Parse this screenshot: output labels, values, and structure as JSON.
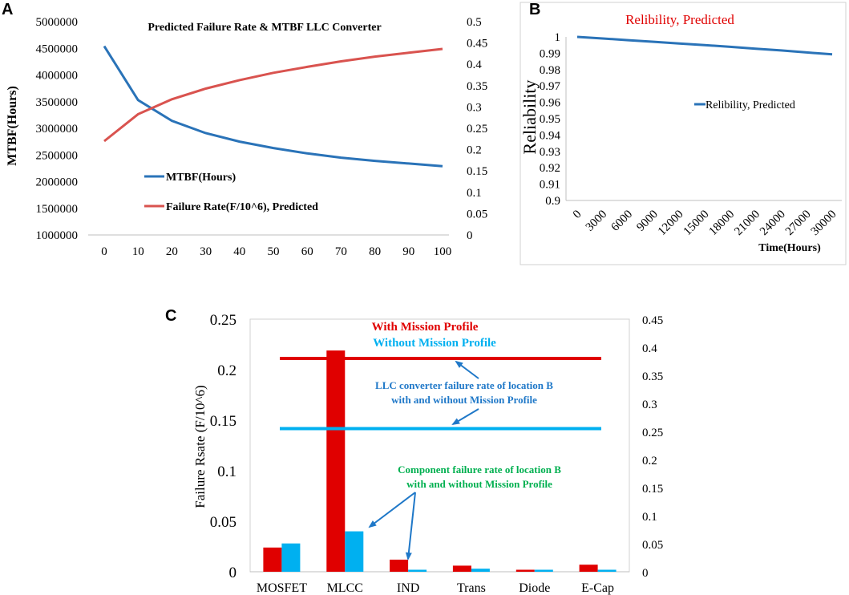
{
  "colors": {
    "blue_line": "#2a73b8",
    "red_line": "#d9534f",
    "red_bar": "#e00000",
    "cyan_bar": "#00b0f0",
    "green_text": "#00b050",
    "blue_text": "#1f78c8",
    "red_title": "#e00000",
    "axis": "#bfbfbf",
    "frame": "#d0d0d0"
  },
  "panels": {
    "a": "A",
    "b": "B",
    "c": "C"
  },
  "chart_data": [
    {
      "id": "A",
      "type": "line",
      "title": "Predicted Failure Rate & MTBF LLC Converter",
      "xlabel": "",
      "ylabel": "MTBF(Hours)",
      "x": [
        0,
        10,
        20,
        30,
        40,
        50,
        60,
        70,
        80,
        90,
        100
      ],
      "x_ticks": [
        "0",
        "10",
        "20",
        "30",
        "40",
        "50",
        "60",
        "70",
        "80",
        "90",
        "100"
      ],
      "ylim": [
        1000000,
        5000000
      ],
      "y_ticks": [
        "1000000",
        "1500000",
        "2000000",
        "2500000",
        "3000000",
        "3500000",
        "4000000",
        "4500000",
        "5000000"
      ],
      "y2lim": [
        0,
        0.5
      ],
      "y2_ticks": [
        "0",
        "0.05",
        "0.1",
        "0.15",
        "0.2",
        "0.25",
        "0.3",
        "0.35",
        "0.4",
        "0.45",
        "0.5"
      ],
      "series": [
        {
          "name": "MTBF(Hours)",
          "axis": "left",
          "color": "#2a73b8",
          "values": [
            4540000,
            3530000,
            3140000,
            2910000,
            2750000,
            2630000,
            2530000,
            2450000,
            2390000,
            2340000,
            2290000
          ]
        },
        {
          "name": "Failure Rate(F/10^6), Predicted",
          "axis": "right",
          "color": "#d9534f",
          "values": [
            0.22,
            0.283,
            0.318,
            0.343,
            0.363,
            0.38,
            0.394,
            0.407,
            0.418,
            0.427,
            0.436
          ]
        }
      ],
      "legend": "center-left"
    },
    {
      "id": "B",
      "type": "line",
      "title": "Relibility, Predicted",
      "xlabel": "Time(Hours)",
      "ylabel": "Reliability",
      "x": [
        0,
        3000,
        6000,
        9000,
        12000,
        15000,
        18000,
        21000,
        24000,
        27000,
        30000
      ],
      "x_ticks": [
        "0",
        "3000",
        "6000",
        "9000",
        "12000",
        "15000",
        "18000",
        "21000",
        "24000",
        "27000",
        "30000"
      ],
      "ylim": [
        0.9,
        1.0
      ],
      "y_ticks": [
        "0.9",
        "0.91",
        "0.92",
        "0.93",
        "0.94",
        "0.95",
        "0.96",
        "0.97",
        "0.98",
        "0.99",
        "1"
      ],
      "series": [
        {
          "name": "Relibility, Predicted",
          "color": "#2a73b8",
          "values": [
            1.0,
            0.999,
            0.998,
            0.997,
            0.996,
            0.995,
            0.9939,
            0.9928,
            0.9917,
            0.9905,
            0.9893
          ]
        }
      ],
      "legend": "center-right"
    },
    {
      "id": "C",
      "type": "bar",
      "title": "",
      "xlabel": "",
      "ylabel": "Failure Rsate (F/10^6)",
      "categories": [
        "MOSFET",
        "MLCC",
        "IND",
        "Trans",
        "Diode",
        "E-Cap"
      ],
      "ylim": [
        0,
        0.25
      ],
      "y_ticks": [
        "0",
        "0.05",
        "0.1",
        "0.15",
        "0.2",
        "0.25"
      ],
      "y2lim": [
        0,
        0.45
      ],
      "y2_ticks": [
        "0",
        "0.05",
        "0.1",
        "0.15",
        "0.2",
        "0.25",
        "0.3",
        "0.35",
        "0.4",
        "0.45"
      ],
      "series": [
        {
          "name": "With Mission Profile",
          "color": "#e00000",
          "values": [
            0.024,
            0.219,
            0.012,
            0.006,
            0.002,
            0.007
          ]
        },
        {
          "name": "Without Mission Profile",
          "color": "#00b0f0",
          "values": [
            0.028,
            0.04,
            0.002,
            0.003,
            0.002,
            0.002
          ]
        }
      ],
      "reference_lines": [
        {
          "name": "With Mission Profile",
          "axis": "right",
          "value": 0.38,
          "color": "#e00000"
        },
        {
          "name": "Without Mission Profile",
          "axis": "right",
          "value": 0.255,
          "color": "#00b0f0"
        }
      ],
      "annotations": {
        "legend_with": "With Mission Profile",
        "legend_without": "Without Mission Profile",
        "llc_line1": "LLC converter  failure rate of location B",
        "llc_line2": "with and without Mission Profile",
        "comp_line1": "Component failure rate of location B",
        "comp_line2": "with and without Mission Profile"
      }
    }
  ]
}
